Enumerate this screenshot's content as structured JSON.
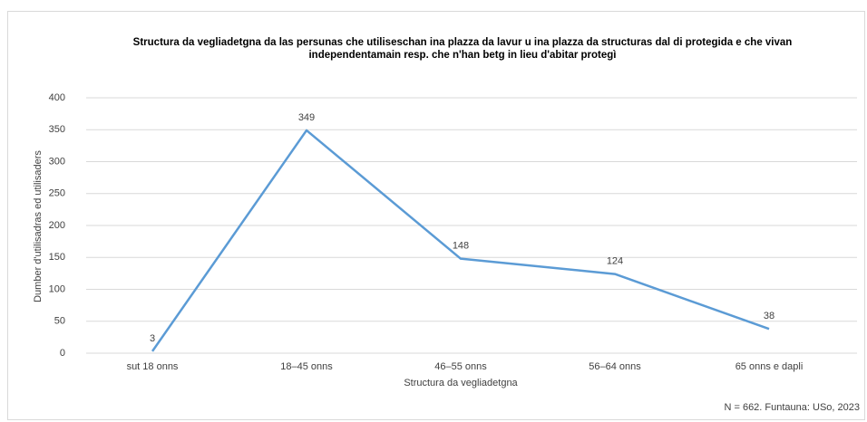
{
  "chart_data": {
    "type": "line",
    "title": "Structura da vegliadetgna da las persunas che utiliseschan ina plazza da lavur u ina plazza da structuras dal di protegida e che vivan independentamain resp. che n'han betg in lieu d'abitar protegì",
    "x_label": "Structura da vegliadetgna",
    "y_label": "Dumber d'utilisadras ed utilisaders",
    "note": "N = 662. Funtauna: USo, 2023",
    "categories": [
      "sut 18 onns",
      "18–45 onns",
      "46–55 onns",
      "56–64 onns",
      "65 onns e dapli"
    ],
    "values": [
      3,
      349,
      148,
      124,
      38
    ],
    "color": "#5b9bd5",
    "ylim": [
      0,
      400
    ],
    "yticks": [
      0,
      50,
      100,
      150,
      200,
      250,
      300,
      350,
      400
    ],
    "grid": true
  }
}
